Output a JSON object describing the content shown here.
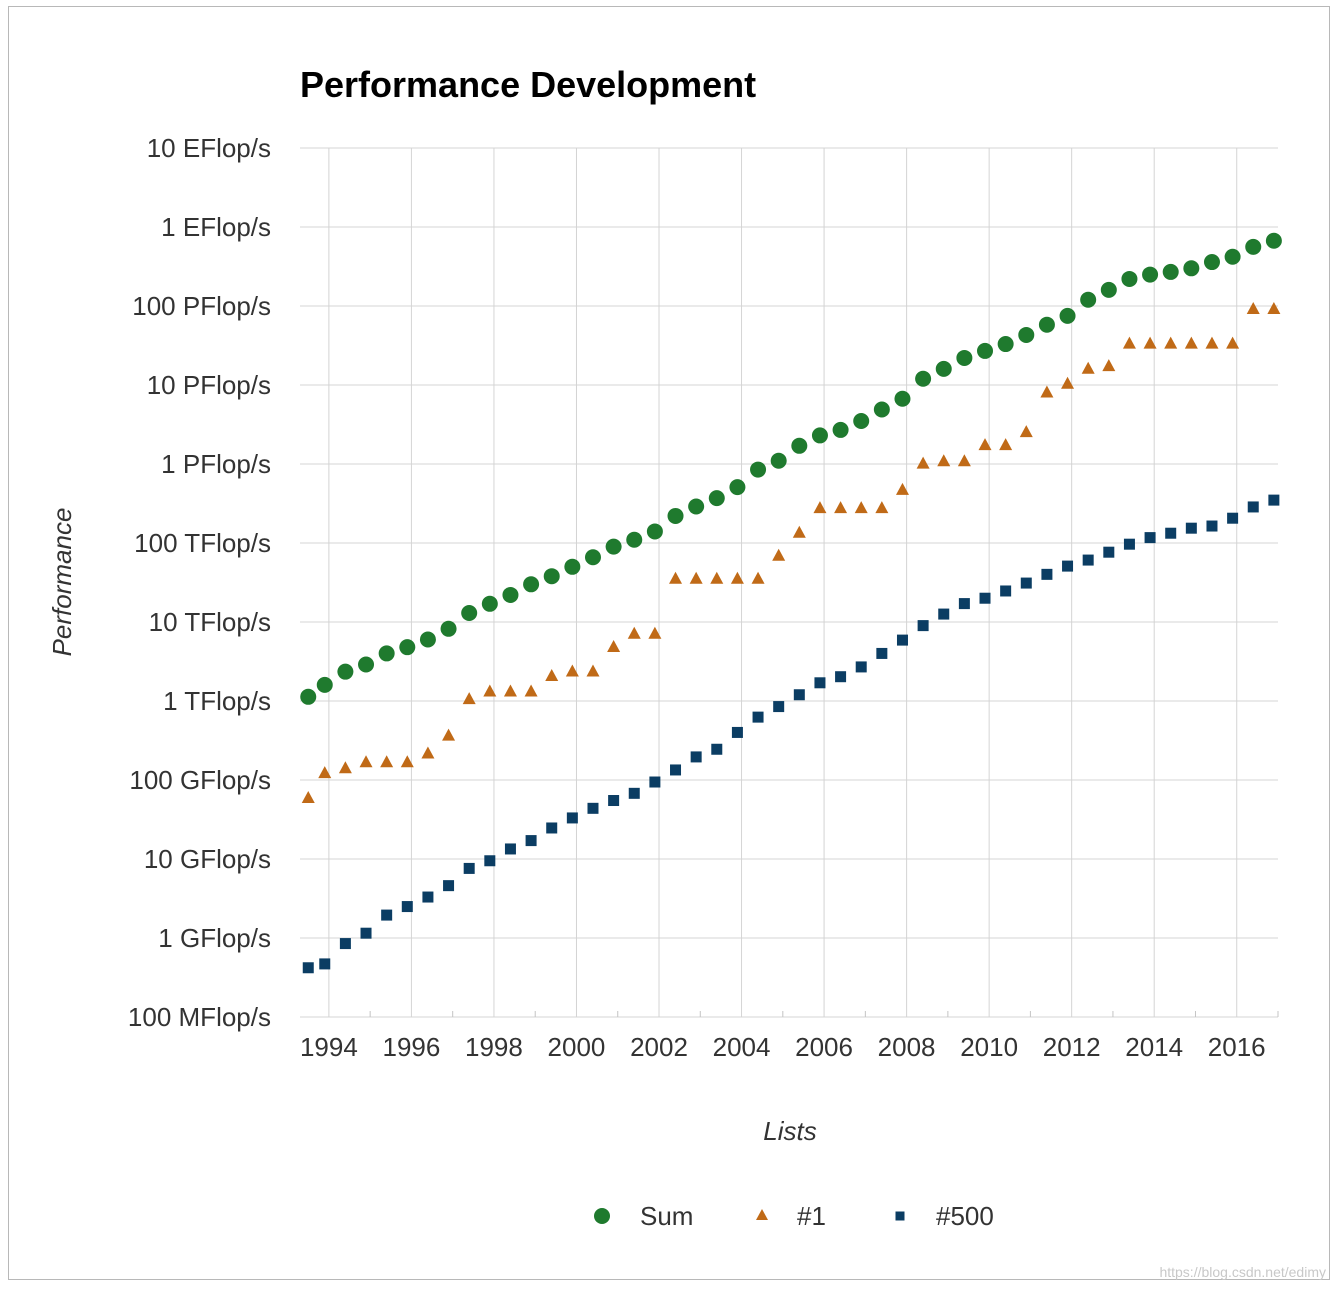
{
  "chart_data": {
    "type": "scatter",
    "title": "Performance Development",
    "xlabel": "Lists",
    "ylabel": "Performance",
    "yscale": "log",
    "ylim": [
      0.1,
      10000000000
    ],
    "xlim": [
      1993.3,
      2017.0
    ],
    "y_ticks": [
      {
        "value": 10000000000,
        "label": "10 EFlop/s"
      },
      {
        "value": 1000000000,
        "label": "1 EFlop/s"
      },
      {
        "value": 100000000,
        "label": "100 PFlop/s"
      },
      {
        "value": 10000000,
        "label": "10 PFlop/s"
      },
      {
        "value": 1000000,
        "label": "1 PFlop/s"
      },
      {
        "value": 100000,
        "label": "100 TFlop/s"
      },
      {
        "value": 10000,
        "label": "10 TFlop/s"
      },
      {
        "value": 1000,
        "label": "1 TFlop/s"
      },
      {
        "value": 100,
        "label": "100 GFlop/s"
      },
      {
        "value": 10,
        "label": "10 GFlop/s"
      },
      {
        "value": 1,
        "label": "1 GFlop/s"
      },
      {
        "value": 0.1,
        "label": "100 MFlop/s"
      }
    ],
    "x_ticks": [
      {
        "value": 1994,
        "label": "1994"
      },
      {
        "value": 1996,
        "label": "1996"
      },
      {
        "value": 1998,
        "label": "1998"
      },
      {
        "value": 2000,
        "label": "2000"
      },
      {
        "value": 2002,
        "label": "2002"
      },
      {
        "value": 2004,
        "label": "2004"
      },
      {
        "value": 2006,
        "label": "2006"
      },
      {
        "value": 2008,
        "label": "2008"
      },
      {
        "value": 2010,
        "label": "2010"
      },
      {
        "value": 2012,
        "label": "2012"
      },
      {
        "value": 2014,
        "label": "2014"
      },
      {
        "value": 2016,
        "label": "2016"
      }
    ],
    "x_minor_ticks": [
      1995,
      1997,
      1999,
      2001,
      2003,
      2005,
      2007,
      2009,
      2011,
      2013,
      2015,
      2017
    ],
    "grid": true,
    "legend_position": "bottom-center",
    "x": [
      1993.5,
      1993.9,
      1994.4,
      1994.9,
      1995.4,
      1995.9,
      1996.4,
      1996.9,
      1997.4,
      1997.9,
      1998.4,
      1998.9,
      1999.4,
      1999.9,
      2000.4,
      2000.9,
      2001.4,
      2001.9,
      2002.4,
      2002.9,
      2003.4,
      2003.9,
      2004.4,
      2004.9,
      2005.4,
      2005.9,
      2006.4,
      2006.9,
      2007.4,
      2007.9,
      2008.4,
      2008.9,
      2009.4,
      2009.9,
      2010.4,
      2010.9,
      2011.4,
      2011.9,
      2012.4,
      2012.9,
      2013.4,
      2013.9,
      2014.4,
      2014.9,
      2015.4,
      2015.9,
      2016.4,
      2016.9
    ],
    "series": [
      {
        "name": "Sum",
        "marker": "circle",
        "color": "#1f7a2e",
        "values": [
          1130,
          1600,
          2350,
          2900,
          4000,
          4800,
          6000,
          8200,
          13000,
          17000,
          22000,
          30000,
          38000,
          50000,
          66000,
          90000,
          110000,
          140000,
          220000,
          290000,
          370000,
          510000,
          850000,
          1100000,
          1700000,
          2300000,
          2700000,
          3500000,
          4900000,
          6700000,
          12000000,
          16000000,
          22000000,
          27000000,
          33000000,
          43000000,
          58000000,
          75000000,
          120000000,
          160000000,
          220000000,
          250000000,
          270000000,
          300000000,
          360000000,
          420000000,
          560000000,
          670000000
        ]
      },
      {
        "name": "#1",
        "marker": "triangle",
        "color": "#c06a17",
        "values": [
          60,
          124,
          143,
          170,
          170,
          170,
          220,
          370,
          1070,
          1340,
          1340,
          1340,
          2100,
          2400,
          2400,
          4900,
          7200,
          7200,
          35800,
          35800,
          35800,
          35800,
          35800,
          70000,
          137000,
          280000,
          280000,
          280000,
          280000,
          478000,
          1026000,
          1100000,
          1100000,
          1760000,
          1760000,
          2570000,
          8160000,
          10510000,
          16320000,
          17590000,
          33860000,
          33860000,
          33860000,
          33860000,
          33860000,
          33860000,
          93010000,
          93010000
        ]
      },
      {
        "name": "#500",
        "marker": "square",
        "color": "#0b3d63",
        "values": [
          0.42,
          0.47,
          0.85,
          1.15,
          1.95,
          2.5,
          3.3,
          4.6,
          7.6,
          9.5,
          13.4,
          17.1,
          24.7,
          33.1,
          43.8,
          55.0,
          67.8,
          94.3,
          134.0,
          196.0,
          245.0,
          400.0,
          625.0,
          850.0,
          1200.0,
          1700.0,
          2030.0,
          2700.0,
          4000.0,
          5900.0,
          9000.0,
          12600.0,
          17100.0,
          20000.0,
          24700.0,
          31100.0,
          40100.0,
          51000.0,
          60800.0,
          76500.0,
          96600.0,
          117000.0,
          133000.0,
          154000.0,
          164000.0,
          206000.0,
          286000.0,
          349000.0
        ]
      }
    ]
  },
  "watermark": "https://blog.csdn.net/edimy"
}
